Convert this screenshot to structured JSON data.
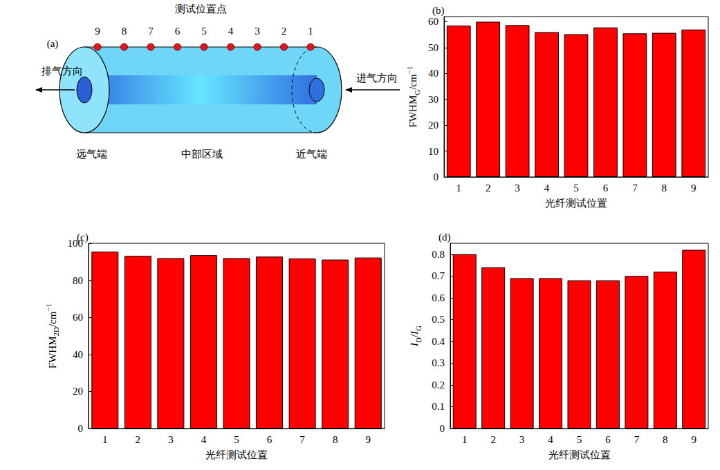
{
  "diagram": {
    "label": "(a)",
    "title": "测试位置点",
    "points": [
      9,
      8,
      7,
      6,
      5,
      4,
      3,
      2,
      1
    ],
    "exhaust": "排气方向",
    "intake": "进气方向",
    "far_end": "远气端",
    "middle": "中部区域",
    "near_end": "近气端"
  },
  "chart_data": [
    {
      "type": "bar",
      "title": "(b)",
      "categories": [
        "1",
        "2",
        "3",
        "4",
        "5",
        "6",
        "7",
        "8",
        "9"
      ],
      "values": [
        58.5,
        60,
        58.7,
        56,
        55.2,
        57.8,
        55.5,
        55.7,
        57
      ],
      "color": "#ff0000",
      "xlabel": "光纤测试位置",
      "ylabel": [
        {
          "text": "FWHM",
          "style": "normal"
        },
        {
          "text": "G",
          "style": "sub"
        },
        {
          "text": "/cm",
          "style": "normal"
        },
        {
          "text": "−1",
          "style": "sup"
        }
      ],
      "ylim": [
        0,
        62
      ],
      "yticks": [
        0,
        10,
        20,
        30,
        40,
        50,
        60
      ],
      "grid": false
    },
    {
      "type": "bar",
      "title": "(c)",
      "categories": [
        "1",
        "2",
        "3",
        "4",
        "5",
        "6",
        "7",
        "8",
        "9"
      ],
      "values": [
        95.5,
        93.2,
        92,
        93.6,
        92,
        92.8,
        91.8,
        91.2,
        92.3
      ],
      "color": "#ff0000",
      "xlabel": "光纤测试位置",
      "ylabel": [
        {
          "text": "FWHM",
          "style": "normal"
        },
        {
          "text": "2D",
          "style": "sub"
        },
        {
          "text": "/cm",
          "style": "normal"
        },
        {
          "text": "−1",
          "style": "sup"
        }
      ],
      "ylim": [
        0,
        100
      ],
      "yticks": [
        0,
        20,
        40,
        60,
        80,
        100
      ],
      "grid": false
    },
    {
      "type": "bar",
      "title": "(d)",
      "categories": [
        "1",
        "2",
        "3",
        "4",
        "5",
        "6",
        "7",
        "8",
        "9"
      ],
      "values": [
        0.8,
        0.74,
        0.69,
        0.69,
        0.68,
        0.68,
        0.7,
        0.72,
        0.82
      ],
      "color": "#ff0000",
      "xlabel": "光纤测试位置",
      "ylabel": [
        {
          "text": "I",
          "style": "italic"
        },
        {
          "text": "D",
          "style": "sub"
        },
        {
          "text": "/",
          "style": "normal"
        },
        {
          "text": "I",
          "style": "italic"
        },
        {
          "text": "G",
          "style": "sub"
        }
      ],
      "ylim": [
        0,
        0.85
      ],
      "yticks": [
        0,
        0.1,
        0.2,
        0.3,
        0.4,
        0.5,
        0.6,
        0.7,
        0.8
      ],
      "grid": false
    }
  ]
}
